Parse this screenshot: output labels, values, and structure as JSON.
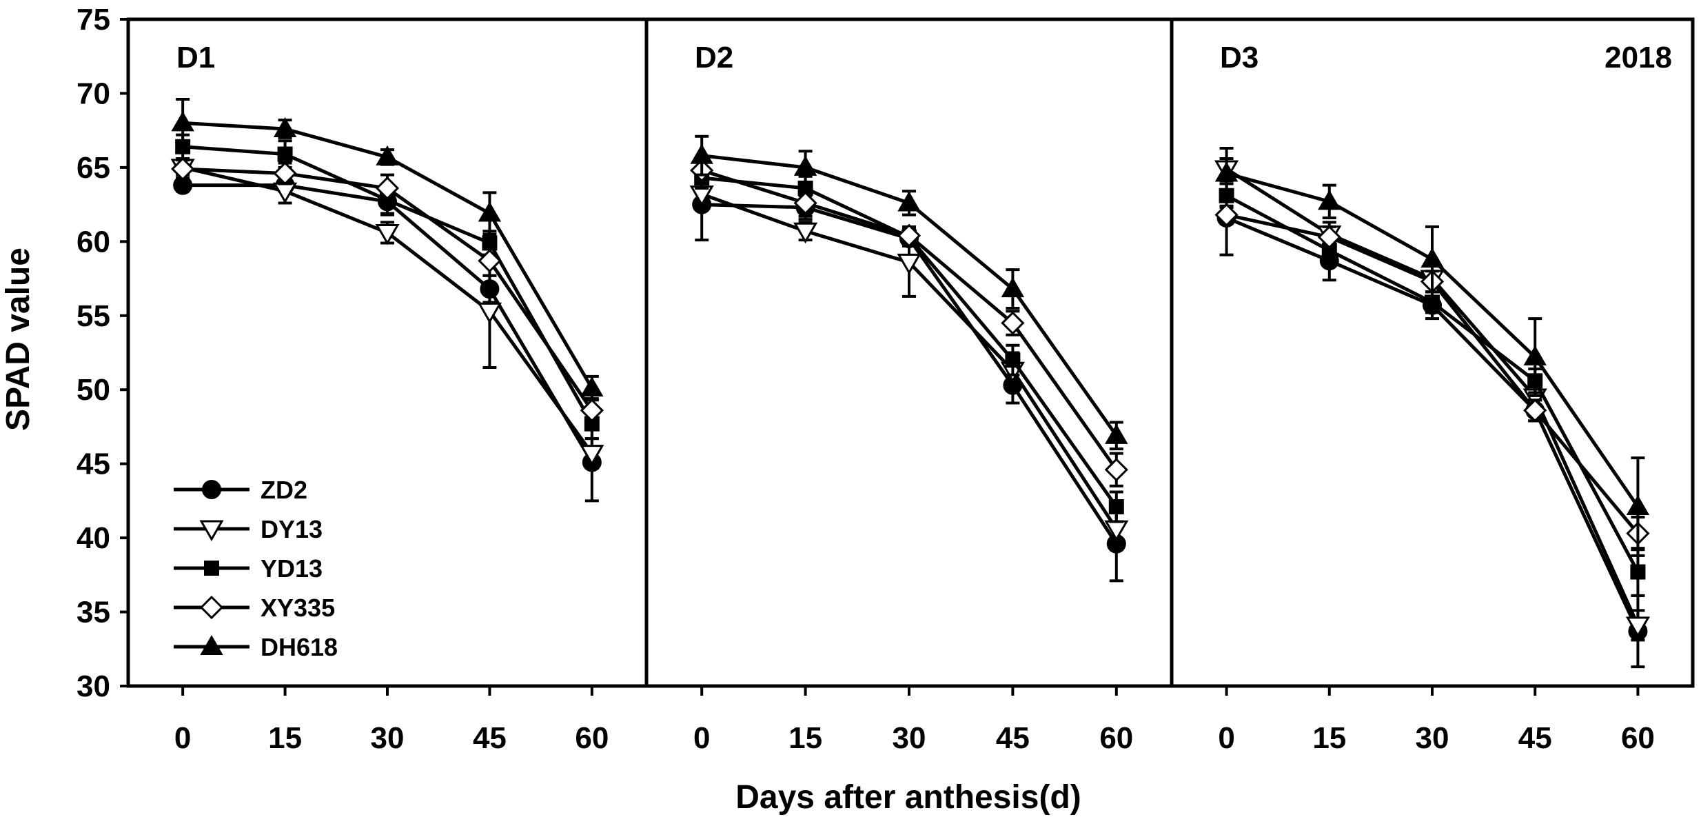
{
  "chart_data": {
    "type": "line",
    "ylabel": "SPAD  value",
    "xlabel": "Days after anthesis(d)",
    "ylim": [
      30,
      75
    ],
    "yticks": [
      30,
      35,
      40,
      45,
      50,
      55,
      60,
      65,
      70,
      75
    ],
    "x": [
      0,
      15,
      30,
      45,
      60
    ],
    "xticks": [
      "0",
      "15",
      "30",
      "45",
      "60"
    ],
    "legend_position": "bottom-left of first panel",
    "series_markers": {
      "ZD2": "filled-circle",
      "DY13": "open-triangle-down",
      "YD13": "filled-square",
      "XY335": "open-diamond",
      "DH618": "filled-triangle-up"
    },
    "panels": [
      {
        "label": "D1",
        "annotation": "",
        "series": [
          {
            "name": "ZD2",
            "values": [
              63.8,
              63.8,
              62.7,
              56.8,
              45.1
            ],
            "errors": [
              0.4,
              0.4,
              0.8,
              0.9,
              2.6
            ]
          },
          {
            "name": "DY13",
            "values": [
              65.0,
              63.4,
              60.6,
              55.3,
              45.7
            ],
            "errors": [
              0.5,
              0.8,
              0.7,
              3.8,
              1.0
            ]
          },
          {
            "name": "YD13",
            "values": [
              66.4,
              65.9,
              62.8,
              59.9,
              47.7
            ],
            "errors": [
              0.8,
              0.9,
              1.0,
              0.8,
              1.0
            ]
          },
          {
            "name": "XY335",
            "values": [
              64.9,
              64.6,
              63.6,
              58.7,
              48.6
            ],
            "errors": [
              0.6,
              0.7,
              0.9,
              1.0,
              0.8
            ]
          },
          {
            "name": "DH618",
            "values": [
              68.0,
              67.6,
              65.7,
              61.9,
              50.1
            ],
            "errors": [
              1.6,
              0.6,
              0.5,
              1.4,
              0.8
            ]
          }
        ]
      },
      {
        "label": "D2",
        "annotation": "",
        "series": [
          {
            "name": "ZD2",
            "values": [
              62.5,
              62.3,
              60.2,
              50.3,
              39.6
            ],
            "errors": [
              2.4,
              0.8,
              0.5,
              1.2,
              2.5
            ]
          },
          {
            "name": "DY13",
            "values": [
              63.2,
              60.7,
              58.6,
              51.3,
              40.6
            ],
            "errors": [
              0.8,
              0.6,
              2.3,
              1.2,
              1.4
            ]
          },
          {
            "name": "YD13",
            "values": [
              64.3,
              63.6,
              60.3,
              52.0,
              42.1
            ],
            "errors": [
              0.7,
              0.8,
              0.6,
              1.0,
              1.0
            ]
          },
          {
            "name": "XY335",
            "values": [
              64.8,
              62.6,
              60.4,
              54.5,
              44.6
            ],
            "errors": [
              0.8,
              0.9,
              0.6,
              0.8,
              1.1
            ]
          },
          {
            "name": "DH618",
            "values": [
              65.8,
              65.0,
              62.6,
              56.8,
              46.9
            ],
            "errors": [
              1.3,
              1.1,
              0.8,
              1.3,
              0.9
            ]
          }
        ]
      },
      {
        "label": "D3",
        "annotation": "2018",
        "series": [
          {
            "name": "ZD2",
            "values": [
              61.6,
              58.7,
              55.7,
              48.6,
              33.7
            ],
            "errors": [
              2.5,
              1.3,
              0.9,
              0.7,
              2.4
            ]
          },
          {
            "name": "DY13",
            "values": [
              64.9,
              60.5,
              57.5,
              49.5,
              34.1
            ],
            "errors": [
              0.7,
              0.8,
              0.9,
              0.7,
              1.0
            ]
          },
          {
            "name": "YD13",
            "values": [
              63.1,
              59.4,
              55.9,
              50.6,
              37.7
            ],
            "errors": [
              0.8,
              0.9,
              0.7,
              0.8,
              1.6
            ]
          },
          {
            "name": "XY335",
            "values": [
              61.8,
              60.3,
              57.3,
              48.6,
              40.3
            ],
            "errors": [
              0.6,
              0.7,
              0.7,
              0.7,
              1.1
            ]
          },
          {
            "name": "DH618",
            "values": [
              64.6,
              62.7,
              58.8,
              52.2,
              42.1
            ],
            "errors": [
              1.7,
              1.1,
              2.2,
              2.6,
              3.3
            ]
          }
        ]
      }
    ]
  }
}
